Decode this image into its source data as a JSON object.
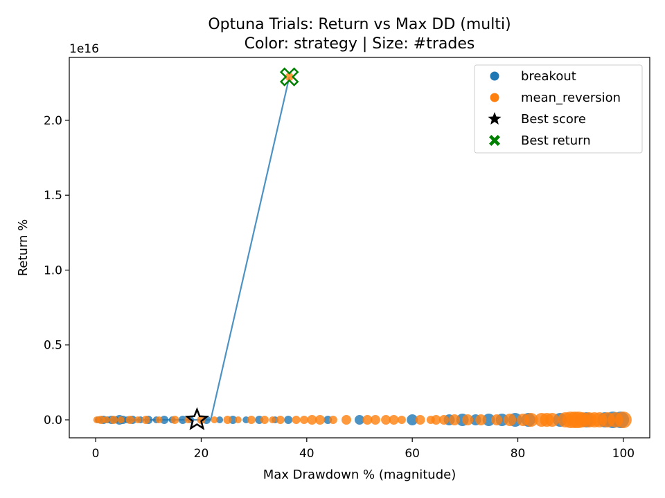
{
  "chart_data": {
    "type": "scatter",
    "title": "Optuna Trials: Return vs Max DD (multi)",
    "subtitle": "Color: strategy | Size: #trades",
    "xlabel": "Max Drawdown % (magnitude)",
    "ylabel": "Return %",
    "y_offset_text": "1e16",
    "xlim": [
      -5,
      105
    ],
    "ylim": [
      -0.12,
      2.42
    ],
    "x_ticks": [
      0,
      20,
      40,
      60,
      80,
      100
    ],
    "x_tick_labels": [
      "0",
      "20",
      "40",
      "60",
      "80",
      "100"
    ],
    "y_ticks": [
      0.0,
      0.5,
      1.0,
      1.5,
      2.0
    ],
    "y_tick_labels": [
      "0.0",
      "0.5",
      "1.0",
      "1.5",
      "2.0"
    ],
    "y_unit_multiplier": "1e16",
    "grid": false,
    "legend_position": "top-right",
    "colors": {
      "breakout": "#1f77b4",
      "mean_reversion": "#ff7f0e",
      "best_score": "#000000",
      "best_return": "#008000",
      "frontier": "#1f77b4"
    },
    "legend": [
      {
        "label": "breakout",
        "marker": "circle",
        "color": "#1f77b4"
      },
      {
        "label": "mean_reversion",
        "marker": "circle",
        "color": "#ff7f0e"
      },
      {
        "label": "Best score",
        "marker": "star",
        "color": "#000000"
      },
      {
        "label": "Best return",
        "marker": "x-filled",
        "color": "#008000"
      }
    ],
    "series": [
      {
        "name": "breakout",
        "color": "#1f77b4",
        "points": [
          {
            "x": 0.5,
            "y": 0,
            "trades": 5
          },
          {
            "x": 1.5,
            "y": 0,
            "trades": 6
          },
          {
            "x": 2.3,
            "y": 0,
            "trades": 5
          },
          {
            "x": 3.0,
            "y": 0,
            "trades": 6
          },
          {
            "x": 3.8,
            "y": 0,
            "trades": 5
          },
          {
            "x": 4.5,
            "y": 0,
            "trades": 7
          },
          {
            "x": 5.2,
            "y": 0,
            "trades": 6
          },
          {
            "x": 6.0,
            "y": 0,
            "trades": 5
          },
          {
            "x": 7.0,
            "y": 0,
            "trades": 6
          },
          {
            "x": 8.5,
            "y": 0,
            "trades": 5
          },
          {
            "x": 10.0,
            "y": 0,
            "trades": 6
          },
          {
            "x": 11.5,
            "y": 0,
            "trades": 5
          },
          {
            "x": 13.0,
            "y": 0,
            "trades": 6
          },
          {
            "x": 14.5,
            "y": 0,
            "trades": 5
          },
          {
            "x": 16.5,
            "y": 0,
            "trades": 6
          },
          {
            "x": 18.0,
            "y": 0,
            "trades": 5
          },
          {
            "x": 21.0,
            "y": 0,
            "trades": 6
          },
          {
            "x": 23.5,
            "y": 0,
            "trades": 5
          },
          {
            "x": 26.0,
            "y": 0,
            "trades": 6
          },
          {
            "x": 28.5,
            "y": 0,
            "trades": 5
          },
          {
            "x": 31.0,
            "y": 0,
            "trades": 6
          },
          {
            "x": 34.0,
            "y": 0,
            "trades": 5
          },
          {
            "x": 36.5,
            "y": 0,
            "trades": 6
          },
          {
            "x": 44.0,
            "y": 0,
            "trades": 6
          },
          {
            "x": 50.0,
            "y": 0,
            "trades": 7
          },
          {
            "x": 60.0,
            "y": 0,
            "trades": 8
          },
          {
            "x": 67.0,
            "y": 0,
            "trades": 8
          },
          {
            "x": 69.5,
            "y": 0,
            "trades": 9
          },
          {
            "x": 72.0,
            "y": 0,
            "trades": 8
          },
          {
            "x": 74.5,
            "y": 0,
            "trades": 9
          },
          {
            "x": 77.0,
            "y": 0,
            "trades": 9
          },
          {
            "x": 79.5,
            "y": 0,
            "trades": 10
          },
          {
            "x": 82.0,
            "y": 0,
            "trades": 10
          },
          {
            "x": 88.0,
            "y": 0,
            "trades": 10
          },
          {
            "x": 93.0,
            "y": 0,
            "trades": 11
          },
          {
            "x": 96.5,
            "y": 0,
            "trades": 11
          },
          {
            "x": 98.0,
            "y": 0,
            "trades": 12
          },
          {
            "x": 99.5,
            "y": 0,
            "trades": 12
          }
        ]
      },
      {
        "name": "mean_reversion",
        "color": "#ff7f0e",
        "points": [
          {
            "x": 0.2,
            "y": 0,
            "trades": 5
          },
          {
            "x": 1.0,
            "y": 0,
            "trades": 6
          },
          {
            "x": 2.0,
            "y": 0,
            "trades": 5
          },
          {
            "x": 3.4,
            "y": 0,
            "trades": 6
          },
          {
            "x": 4.8,
            "y": 0,
            "trades": 5
          },
          {
            "x": 6.5,
            "y": 0,
            "trades": 6
          },
          {
            "x": 8.0,
            "y": 0,
            "trades": 5
          },
          {
            "x": 9.5,
            "y": 0,
            "trades": 6
          },
          {
            "x": 12.0,
            "y": 0,
            "trades": 5
          },
          {
            "x": 15.0,
            "y": 0,
            "trades": 6
          },
          {
            "x": 17.5,
            "y": 0,
            "trades": 5
          },
          {
            "x": 20.0,
            "y": 0,
            "trades": 6
          },
          {
            "x": 22.5,
            "y": 0,
            "trades": 5
          },
          {
            "x": 25.0,
            "y": 0,
            "trades": 6
          },
          {
            "x": 27.0,
            "y": 0,
            "trades": 5
          },
          {
            "x": 29.5,
            "y": 0,
            "trades": 6
          },
          {
            "x": 32.0,
            "y": 0,
            "trades": 6
          },
          {
            "x": 33.5,
            "y": 0,
            "trades": 5
          },
          {
            "x": 35.0,
            "y": 0,
            "trades": 6
          },
          {
            "x": 36.7,
            "y": 2.29,
            "trades": 6
          },
          {
            "x": 38.0,
            "y": 0,
            "trades": 6
          },
          {
            "x": 39.5,
            "y": 0,
            "trades": 6
          },
          {
            "x": 41.0,
            "y": 0,
            "trades": 7
          },
          {
            "x": 42.5,
            "y": 0,
            "trades": 7
          },
          {
            "x": 45.0,
            "y": 0,
            "trades": 6
          },
          {
            "x": 47.5,
            "y": 0,
            "trades": 7
          },
          {
            "x": 51.5,
            "y": 0,
            "trades": 7
          },
          {
            "x": 53.0,
            "y": 0,
            "trades": 7
          },
          {
            "x": 55.0,
            "y": 0,
            "trades": 7
          },
          {
            "x": 56.5,
            "y": 0,
            "trades": 7
          },
          {
            "x": 58.0,
            "y": 0,
            "trades": 6
          },
          {
            "x": 61.5,
            "y": 0,
            "trades": 7
          },
          {
            "x": 63.5,
            "y": 0,
            "trades": 6
          },
          {
            "x": 64.5,
            "y": 0,
            "trades": 7
          },
          {
            "x": 66.0,
            "y": 0,
            "trades": 7
          },
          {
            "x": 68.0,
            "y": 0,
            "trades": 8
          },
          {
            "x": 70.5,
            "y": 0,
            "trades": 8
          },
          {
            "x": 73.0,
            "y": 0,
            "trades": 8
          },
          {
            "x": 76.0,
            "y": 0,
            "trades": 8
          },
          {
            "x": 78.5,
            "y": 0,
            "trades": 9
          },
          {
            "x": 81.0,
            "y": 0,
            "trades": 9
          },
          {
            "x": 82.5,
            "y": 0,
            "trades": 10
          },
          {
            "x": 84.5,
            "y": 0,
            "trades": 10
          },
          {
            "x": 85.5,
            "y": 0,
            "trades": 10
          },
          {
            "x": 86.5,
            "y": 0,
            "trades": 10
          },
          {
            "x": 89.0,
            "y": 0,
            "trades": 11
          },
          {
            "x": 90.0,
            "y": 0,
            "trades": 12
          },
          {
            "x": 90.8,
            "y": 0,
            "trades": 12
          },
          {
            "x": 91.5,
            "y": 0,
            "trades": 12
          },
          {
            "x": 92.3,
            "y": 0,
            "trades": 11
          },
          {
            "x": 93.5,
            "y": 0,
            "trades": 11
          },
          {
            "x": 94.5,
            "y": 0,
            "trades": 11
          },
          {
            "x": 95.5,
            "y": 0,
            "trades": 11
          },
          {
            "x": 97.0,
            "y": 0,
            "trades": 11
          },
          {
            "x": 98.5,
            "y": 0,
            "trades": 11
          },
          {
            "x": 100.0,
            "y": 0,
            "trades": 12
          }
        ]
      }
    ],
    "frontier_line": [
      {
        "x": 0,
        "y": 0
      },
      {
        "x": 19.2,
        "y": 0
      },
      {
        "x": 21.8,
        "y": 0
      },
      {
        "x": 36.7,
        "y": 2.29
      }
    ],
    "best_score": {
      "x": 19.2,
      "y": 0.0
    },
    "best_return": {
      "x": 36.7,
      "y": 2.29
    }
  }
}
